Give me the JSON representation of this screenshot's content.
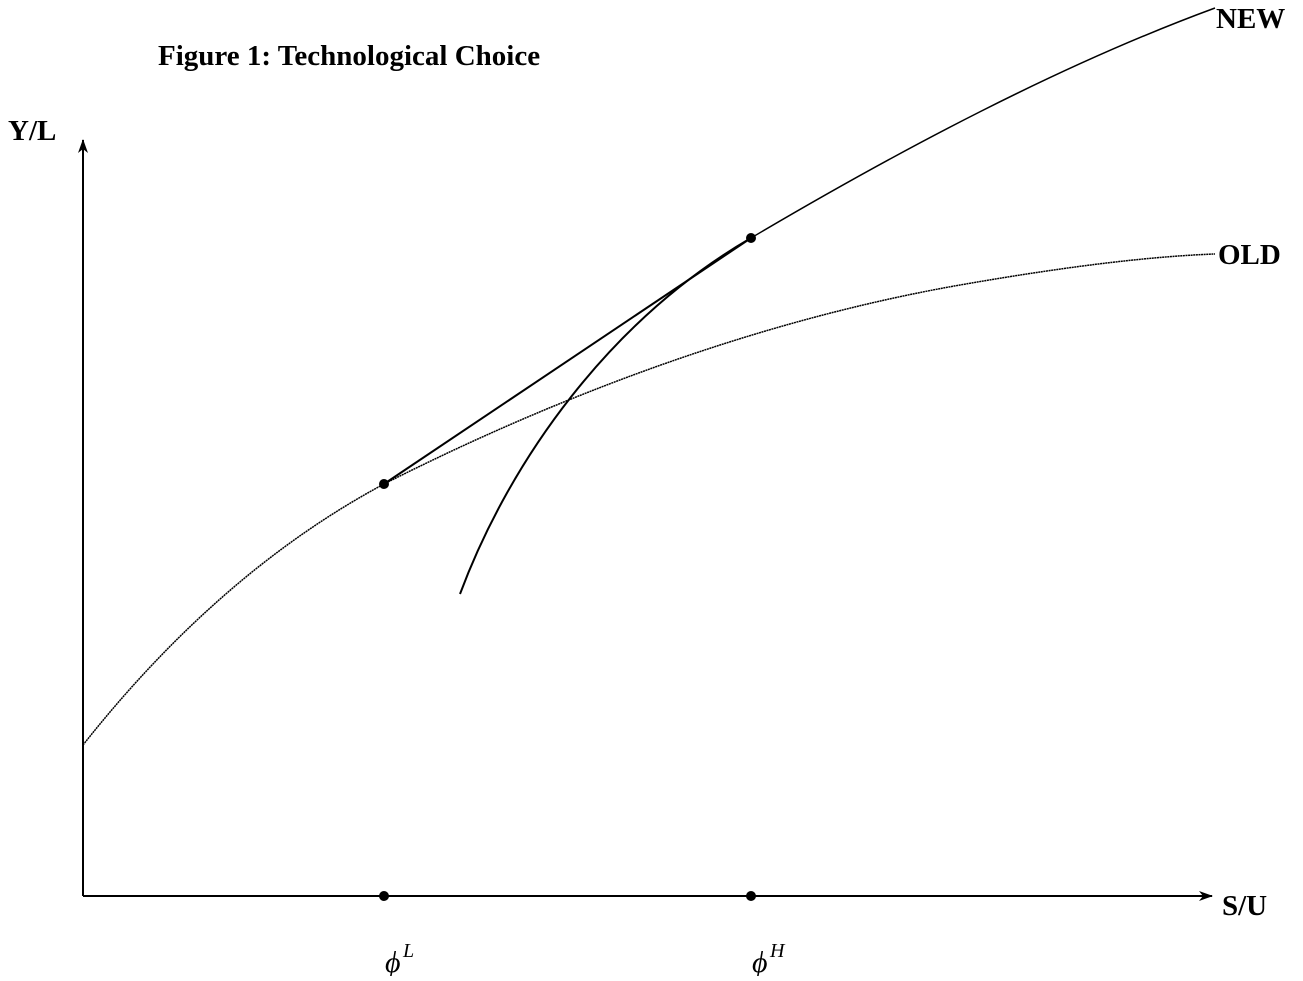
{
  "title": "Figure 1: Technological Choice",
  "y_axis_label": "Y/L",
  "x_axis_label": "S/U",
  "curves": [
    {
      "label": "NEW"
    },
    {
      "label": "OLD"
    }
  ],
  "points": [
    {
      "symbol": "ϕ",
      "superscript": "L"
    },
    {
      "symbol": "ϕ",
      "superscript": "H"
    }
  ]
}
